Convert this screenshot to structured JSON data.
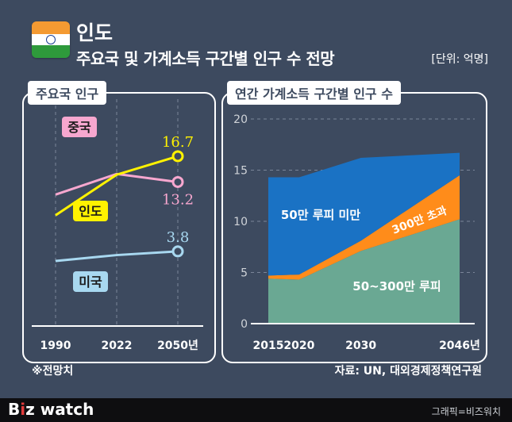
{
  "header": {
    "title": "인도",
    "subtitle": "주요국 및 가계소득 구간별 인구 수 전망",
    "unit": "[단위: 억명]"
  },
  "colors": {
    "background": "#3d4a5f",
    "china": "#f7a7cf",
    "india": "#fff200",
    "usa": "#a8d8f0",
    "under_50": "#1a72c4",
    "over_300": "#ff8c1a",
    "between": "#6aa893",
    "gridline": "#7a8599"
  },
  "chart_data": [
    {
      "type": "line",
      "title": "주요국 인구",
      "categories": [
        "1990",
        "2022",
        "2050년"
      ],
      "series": [
        {
          "name": "중국",
          "values": [
            11.5,
            14.3,
            13.2
          ],
          "end_label": "13.2"
        },
        {
          "name": "인도",
          "values": [
            8.7,
            14.2,
            16.7
          ],
          "end_label": "16.7"
        },
        {
          "name": "미국",
          "values": [
            2.5,
            3.3,
            3.8
          ],
          "end_label": "3.8"
        }
      ]
    },
    {
      "type": "area",
      "title": "연간 가계소득 구간별 인구 수",
      "x": [
        "2015",
        "2020",
        "2030",
        "2046년"
      ],
      "x_values": [
        2015,
        2020,
        2030,
        2046
      ],
      "y_ticks": [
        "0",
        "5",
        "10",
        "15",
        "20"
      ],
      "ylim": [
        0,
        20
      ],
      "stacked": true,
      "series": [
        {
          "name": "50~300만 루피",
          "values": [
            4.4,
            4.3,
            7.1,
            10.2
          ]
        },
        {
          "name": "300만 초과",
          "values": [
            0.3,
            0.5,
            1.0,
            4.3
          ]
        },
        {
          "name": "50만 루피 미만",
          "values": [
            9.6,
            9.5,
            8.1,
            2.2
          ]
        }
      ]
    }
  ],
  "footer_note": "※전망치",
  "source": "자료: UN, 대외경제정책연구원",
  "brand": {
    "prefix": "B",
    "dot": "i",
    "suffix": "z watch"
  },
  "credit": "그래픽=비즈워치"
}
